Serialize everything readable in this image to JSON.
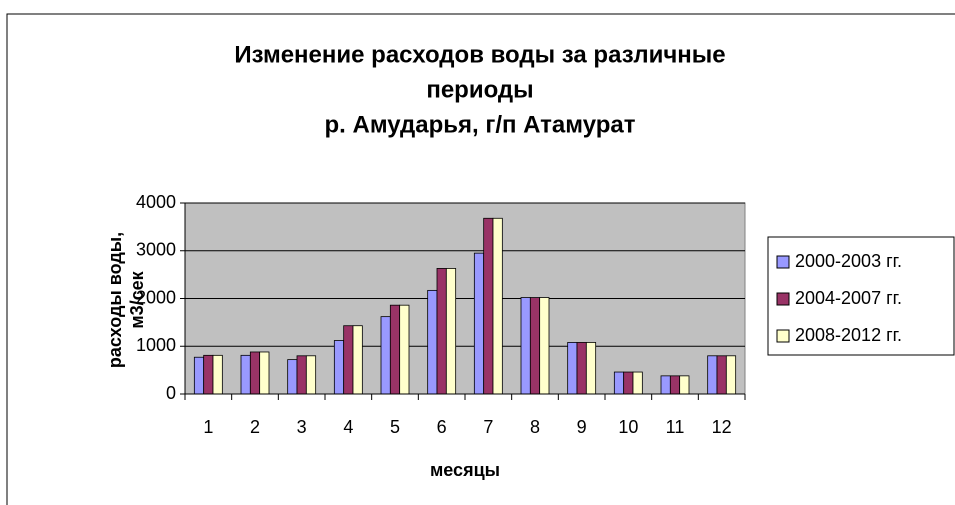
{
  "chart_data": {
    "type": "bar",
    "title": [
      "Изменение расходов воды за различные",
      "периоды",
      "р. Амударья,  г/п Атамурат"
    ],
    "xlabel": "месяцы",
    "ylabel": [
      "расходы воды,",
      "м3/сек"
    ],
    "categories": [
      "1",
      "2",
      "3",
      "4",
      "5",
      "6",
      "7",
      "8",
      "9",
      "10",
      "11",
      "12"
    ],
    "series": [
      {
        "name": "2000-2003 гг.",
        "color": "#9999ff",
        "values": [
          770,
          810,
          720,
          1120,
          1620,
          2170,
          2950,
          2020,
          1080,
          460,
          380,
          800
        ]
      },
      {
        "name": "2004-2007 гг.",
        "color": "#993366",
        "values": [
          810,
          880,
          800,
          1430,
          1860,
          2630,
          3680,
          2020,
          1080,
          460,
          380,
          800
        ]
      },
      {
        "name": "2008-2012 гг.",
        "color": "#ffffcc",
        "values": [
          810,
          880,
          800,
          1430,
          1860,
          2630,
          3680,
          2020,
          1080,
          460,
          380,
          800
        ]
      }
    ],
    "ylim": [
      0,
      4000
    ],
    "yticks": [
      0,
      1000,
      2000,
      3000,
      4000
    ],
    "grid": true,
    "legend": "right"
  }
}
